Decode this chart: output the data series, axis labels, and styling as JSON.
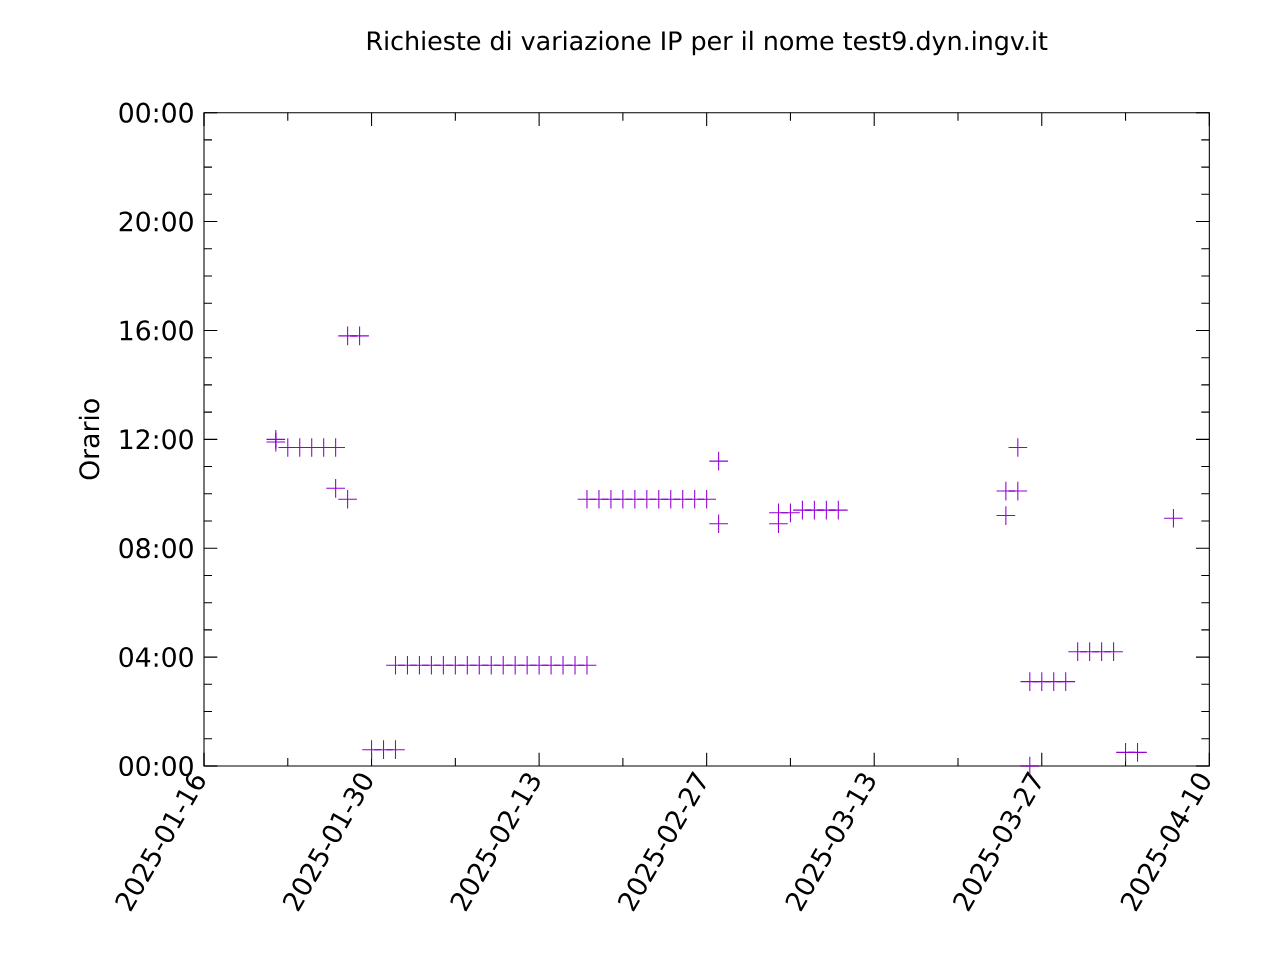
{
  "chart_data": {
    "type": "scatter",
    "title": "Richieste di variazione IP per il nome test9.dyn.ingv.it",
    "ylabel": "Orario",
    "marker": "cross",
    "grid": false,
    "xlim": [
      "2025-01-16",
      "2025-04-10"
    ],
    "xticks": [
      "2025-01-16",
      "2025-01-30",
      "2025-02-13",
      "2025-02-27",
      "2025-03-13",
      "2025-03-27",
      "2025-04-10"
    ],
    "ylim": [
      0,
      24
    ],
    "yticks": [
      {
        "value": 0,
        "label": "00:00"
      },
      {
        "value": 4,
        "label": "04:00"
      },
      {
        "value": 8,
        "label": "08:00"
      },
      {
        "value": 12,
        "label": "12:00"
      },
      {
        "value": 16,
        "label": "16:00"
      },
      {
        "value": 20,
        "label": "20:00"
      },
      {
        "value": 24,
        "label": "00:00"
      }
    ],
    "series": [
      {
        "color": "#9400d3",
        "x": [
          "2025-01-22",
          "2025-01-22",
          "2025-01-23",
          "2025-01-24",
          "2025-01-25",
          "2025-01-26",
          "2025-01-27",
          "2025-01-27",
          "2025-01-28",
          "2025-01-28",
          "2025-01-29",
          "2025-01-30",
          "2025-01-31",
          "2025-02-01",
          "2025-02-01",
          "2025-02-02",
          "2025-02-03",
          "2025-02-04",
          "2025-02-05",
          "2025-02-06",
          "2025-02-07",
          "2025-02-08",
          "2025-02-09",
          "2025-02-10",
          "2025-02-11",
          "2025-02-12",
          "2025-02-13",
          "2025-02-14",
          "2025-02-15",
          "2025-02-16",
          "2025-02-17",
          "2025-02-17",
          "2025-02-18",
          "2025-02-19",
          "2025-02-20",
          "2025-02-21",
          "2025-02-22",
          "2025-02-23",
          "2025-02-24",
          "2025-02-25",
          "2025-02-26",
          "2025-02-27",
          "2025-02-28",
          "2025-02-28",
          "2025-03-05",
          "2025-03-05",
          "2025-03-06",
          "2025-03-07",
          "2025-03-08",
          "2025-03-09",
          "2025-03-10",
          "2025-03-24",
          "2025-03-24",
          "2025-03-25",
          "2025-03-25",
          "2025-03-26",
          "2025-03-26",
          "2025-03-27",
          "2025-03-28",
          "2025-03-29",
          "2025-03-30",
          "2025-03-31",
          "2025-04-01",
          "2025-04-02",
          "2025-04-03",
          "2025-04-04",
          "2025-04-07"
        ],
        "values": [
          12.0,
          11.9,
          11.7,
          11.7,
          11.7,
          11.7,
          11.7,
          10.2,
          9.8,
          15.8,
          15.8,
          0.6,
          0.6,
          0.6,
          3.7,
          3.7,
          3.7,
          3.7,
          3.7,
          3.7,
          3.7,
          3.7,
          3.7,
          3.7,
          3.7,
          3.7,
          3.7,
          3.7,
          3.7,
          3.7,
          3.7,
          9.8,
          9.8,
          9.8,
          9.8,
          9.8,
          9.8,
          9.8,
          9.8,
          9.8,
          9.8,
          9.8,
          11.2,
          8.9,
          9.3,
          8.9,
          9.3,
          9.4,
          9.4,
          9.4,
          9.4,
          9.2,
          10.1,
          10.1,
          11.7,
          0.0,
          3.1,
          3.1,
          3.1,
          3.1,
          4.2,
          4.2,
          4.2,
          4.2,
          0.5,
          0.5,
          9.1
        ]
      }
    ]
  }
}
